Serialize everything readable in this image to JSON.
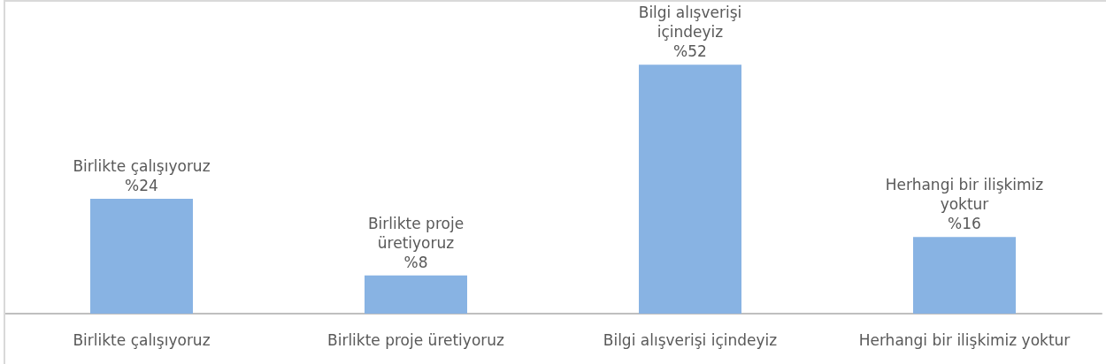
{
  "chart_data": {
    "type": "bar",
    "categories": [
      "Birlikte çalışıyoruz",
      "Birlikte proje üretiyoruz",
      "Bilgi alışverişi içindeyiz",
      "Herhangi bir ilişkimiz yoktur"
    ],
    "values": [
      24,
      8,
      52,
      16
    ],
    "value_labels": [
      "%24",
      "%8",
      "%52",
      "%16"
    ],
    "color": "#88b3e3",
    "grid": false,
    "tick_labels": "x"
  }
}
